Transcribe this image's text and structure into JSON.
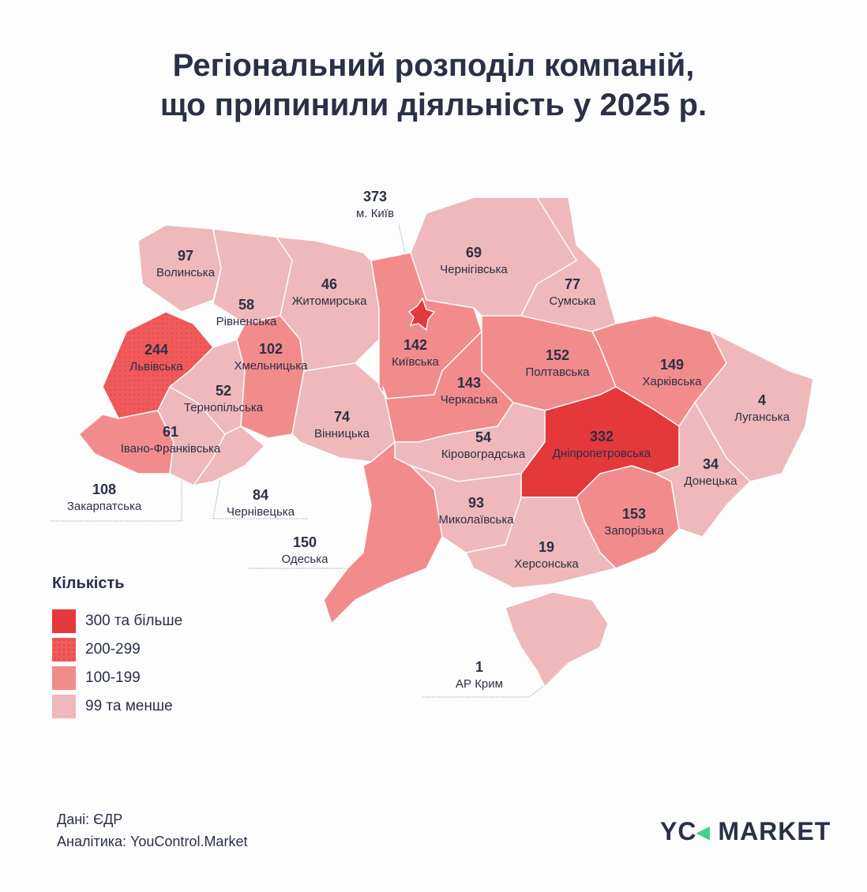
{
  "title_line1": "Регіональний розподіл компаній,",
  "title_line2": "що припинили діяльність у 2025 р.",
  "colors": {
    "300+": "#e5383b",
    "200-299": "#f05a5a",
    "100-199": "#f28b8b",
    "0-99": "#efb8bb",
    "text": "#2a3045",
    "logo_accent": "#3ed18f"
  },
  "regions": [
    {
      "name": "Волинська",
      "value": "97",
      "bin": "0-99"
    },
    {
      "name": "Рівненська",
      "value": "58",
      "bin": "0-99"
    },
    {
      "name": "Львівська",
      "value": "244",
      "bin": "200-299"
    },
    {
      "name": "Закарпатська",
      "value": "108",
      "bin": "100-199"
    },
    {
      "name": "Івано-Франківська",
      "value": "61",
      "bin": "0-99"
    },
    {
      "name": "Тернопільська",
      "value": "52",
      "bin": "0-99"
    },
    {
      "name": "Чернівецька",
      "value": "84",
      "bin": "0-99"
    },
    {
      "name": "Хмельницька",
      "value": "102",
      "bin": "100-199"
    },
    {
      "name": "Житомирська",
      "value": "46",
      "bin": "0-99"
    },
    {
      "name": "Вінницька",
      "value": "74",
      "bin": "0-99"
    },
    {
      "name": "Київська",
      "value": "142",
      "bin": "100-199"
    },
    {
      "name": "м. Київ",
      "value": "373",
      "bin": "300+"
    },
    {
      "name": "Чернігівська",
      "value": "69",
      "bin": "0-99"
    },
    {
      "name": "Сумська",
      "value": "77",
      "bin": "0-99"
    },
    {
      "name": "Полтавська",
      "value": "152",
      "bin": "100-199"
    },
    {
      "name": "Харківська",
      "value": "149",
      "bin": "100-199"
    },
    {
      "name": "Луганська",
      "value": "4",
      "bin": "0-99"
    },
    {
      "name": "Донецька",
      "value": "34",
      "bin": "0-99"
    },
    {
      "name": "Черкаська",
      "value": "143",
      "bin": "100-199"
    },
    {
      "name": "Кіровоградська",
      "value": "54",
      "bin": "0-99"
    },
    {
      "name": "Дніпропетровська",
      "value": "332",
      "bin": "300+"
    },
    {
      "name": "Запорізька",
      "value": "153",
      "bin": "100-199"
    },
    {
      "name": "Херсонська",
      "value": "19",
      "bin": "0-99"
    },
    {
      "name": "Миколаївська",
      "value": "93",
      "bin": "0-99"
    },
    {
      "name": "Одеська",
      "value": "150",
      "bin": "100-199"
    },
    {
      "name": "АР Крим",
      "value": "1",
      "bin": "0-99"
    }
  ],
  "legend": {
    "title": "Кількість",
    "items": [
      {
        "label": "300 та більше",
        "bin": "300+"
      },
      {
        "label": "200-299",
        "bin": "200-299"
      },
      {
        "label": "100-199",
        "bin": "100-199"
      },
      {
        "label": "99 та менше",
        "bin": "0-99"
      }
    ]
  },
  "source": {
    "data": "Дані: ЄДР",
    "analytics": "Аналітика: YouControl.Market"
  },
  "logo": {
    "left": "YC",
    "right": "MARKET"
  }
}
